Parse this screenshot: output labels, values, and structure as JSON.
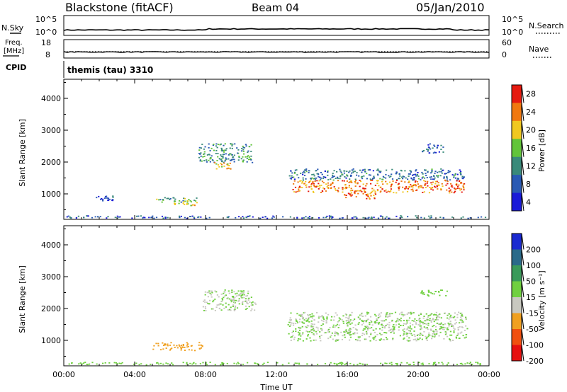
{
  "header": {
    "station": "Blackstone (fitACF)",
    "beam": "Beam 04",
    "date": "05/Jan/2010"
  },
  "top_panels": {
    "nsky_label": "N.Sky",
    "nsearch_label": "N.Search",
    "freq_label_1": "Freq.",
    "freq_label_2": "[MHz]",
    "nave_label": "Nave",
    "cpid_label": "CPID",
    "cpid_value": "themis (tau) 3310",
    "tick_labels": {
      "nsky_left_top": "10^5",
      "nsky_left_bottom": "10^0",
      "nsky_right_top": "10^5",
      "nsky_right_bottom": "10^0",
      "freq_left_top": "18",
      "freq_left_bottom": "8",
      "nave_right_top": "60",
      "nave_right_bottom": "0"
    }
  },
  "chart_data": [
    {
      "type": "heatmap",
      "title": "",
      "quantity": "Power",
      "ylabel": "Slant Range [km]",
      "xlim": [
        0,
        24
      ],
      "ylim": [
        200,
        4600
      ],
      "y_ticks": [
        1000,
        2000,
        3000,
        4000
      ],
      "colorbar": {
        "label": "Power [dB]",
        "ticks": [
          4,
          8,
          12,
          16,
          20,
          24,
          28
        ],
        "colors": [
          "#1a1ad8",
          "#2a5ab4",
          "#3a8a7a",
          "#62c43a",
          "#f0c820",
          "#f07810",
          "#e61a10"
        ]
      },
      "scatter_regions": [
        {
          "t_start": 0.0,
          "t_end": 23.8,
          "range": [
            250,
            330
          ],
          "value": 8
        },
        {
          "t_start": 1.8,
          "t_end": 2.8,
          "range": [
            800,
            950
          ],
          "value": 6
        },
        {
          "t_start": 5.2,
          "t_end": 7.6,
          "range": [
            750,
            900
          ],
          "value": 14
        },
        {
          "t_start": 6.2,
          "t_end": 7.6,
          "range": [
            650,
            800
          ],
          "value": 20
        },
        {
          "t_start": 7.6,
          "t_end": 10.6,
          "range": [
            2000,
            2600
          ],
          "value": 12
        },
        {
          "t_start": 8.4,
          "t_end": 9.4,
          "range": [
            1800,
            2000
          ],
          "value": 20
        },
        {
          "t_start": 12.7,
          "t_end": 22.6,
          "range": [
            1450,
            1800
          ],
          "value": 10
        },
        {
          "t_start": 12.9,
          "t_end": 22.6,
          "range": [
            1050,
            1450
          ],
          "value": 24
        },
        {
          "t_start": 15.8,
          "t_end": 17.6,
          "range": [
            850,
            1050
          ],
          "value": 26
        },
        {
          "t_start": 20.2,
          "t_end": 21.4,
          "range": [
            2300,
            2600
          ],
          "value": 8
        }
      ]
    },
    {
      "type": "heatmap",
      "title": "",
      "quantity": "Velocity",
      "ylabel": "Slant Range [km]",
      "xlabel": "Time UT",
      "xlim": [
        0,
        24
      ],
      "ylim": [
        200,
        4600
      ],
      "x_ticks": [
        "00:00",
        "04:00",
        "08:00",
        "12:00",
        "16:00",
        "20:00",
        "00:00"
      ],
      "y_ticks": [
        1000,
        2000,
        3000,
        4000
      ],
      "colorbar": {
        "label": "Velocity [m s⁻¹]",
        "ticks": [
          200,
          100,
          50,
          15,
          -15,
          -50,
          -100,
          -200
        ],
        "colors": [
          "#1a2ad0",
          "#2a6a8a",
          "#3a9a5a",
          "#70d040",
          "#c8c8c0",
          "#f0a020",
          "#f05010",
          "#e61010"
        ]
      },
      "scatter_regions": [
        {
          "t_start": 0.0,
          "t_end": 23.8,
          "range": [
            250,
            330
          ],
          "value": 20
        },
        {
          "t_start": 5.0,
          "t_end": 7.8,
          "range": [
            700,
            950
          ],
          "value": -40
        },
        {
          "t_start": 7.8,
          "t_end": 10.8,
          "range": [
            1950,
            2600
          ],
          "value": 0
        },
        {
          "t_start": 12.6,
          "t_end": 22.8,
          "range": [
            1000,
            1900
          ],
          "value": 0
        },
        {
          "t_start": 20.0,
          "t_end": 21.6,
          "range": [
            2400,
            2600
          ],
          "value": 5
        }
      ]
    }
  ]
}
